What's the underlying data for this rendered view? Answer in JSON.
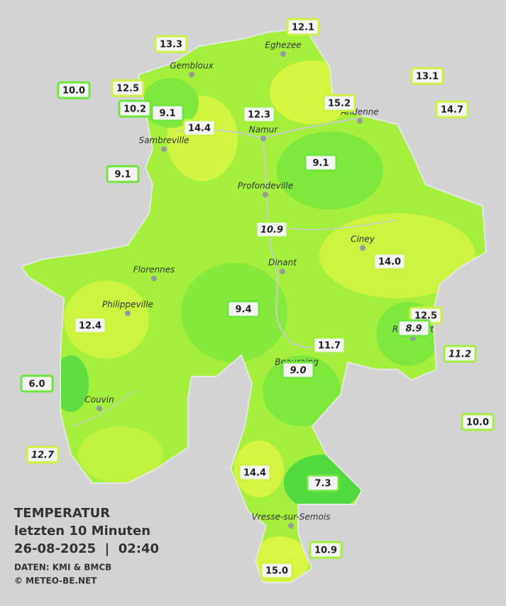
{
  "header": {
    "title": "TEMPERATUR",
    "subtitle": "letzten 10 Minuten",
    "datetime": "26-08-2025  |  02:40",
    "source": "DATEN: KMI & BMCB",
    "copyright": "© METEO-BE.NET"
  },
  "cities": [
    "Eghezee",
    "Gembloux",
    "Andenne",
    "Namur",
    "Sambreville",
    "Profondeville",
    "Ciney",
    "Dinant",
    "Florennes",
    "Philippeville",
    "Rochefort",
    "Beauraing",
    "Couvin",
    "Vresse-sur-Semois"
  ],
  "stations": [
    "12.1",
    "13.3",
    "10.0",
    "12.5",
    "10.2",
    "9.1",
    "14.4",
    "12.3",
    "15.2",
    "13.1",
    "14.7",
    "9.1",
    "9.1",
    "10.9",
    "14.0",
    "9.4",
    "12.5",
    "8.9",
    "12.4",
    "11.7",
    "11.2",
    "9.0",
    "6.0",
    "10.0",
    "12.7",
    "14.4",
    "7.3",
    "10.9",
    "15.0"
  ]
}
